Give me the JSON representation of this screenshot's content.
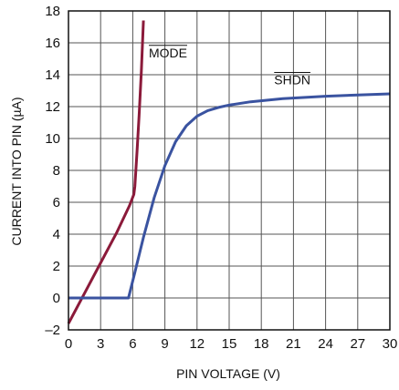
{
  "chart_data": {
    "type": "line",
    "title": "",
    "xlabel": "PIN VOLTAGE (V)",
    "ylabel": "CURRENT INTO PIN (µA)",
    "xlim": [
      0,
      30
    ],
    "ylim": [
      -2,
      18
    ],
    "x_ticks": [
      "0",
      "3",
      "6",
      "9",
      "12",
      "15",
      "18",
      "21",
      "24",
      "27",
      "30"
    ],
    "y_ticks": [
      "–2",
      "0",
      "2",
      "4",
      "6",
      "8",
      "10",
      "12",
      "14",
      "16",
      "18"
    ],
    "grid": true,
    "colors": {
      "mode": "#8B1A3A",
      "shdn": "#3A53A0",
      "grid": "#555555"
    },
    "series": [
      {
        "name": "MODE",
        "overline": true,
        "label_at": [
          7.5,
          15.1
        ],
        "points": [
          [
            0,
            -1.6
          ],
          [
            1.5,
            0.3
          ],
          [
            3,
            2.2
          ],
          [
            4.5,
            4.1
          ],
          [
            5.7,
            5.8
          ],
          [
            6.1,
            6.5
          ],
          [
            6.2,
            7.0
          ],
          [
            6.4,
            9.2
          ],
          [
            6.6,
            11.5
          ],
          [
            6.8,
            14.2
          ],
          [
            7.0,
            17.4
          ]
        ]
      },
      {
        "name": "SHDN",
        "overline": true,
        "label_at": [
          19.2,
          13.4
        ],
        "points": [
          [
            0,
            0.0
          ],
          [
            5.0,
            0.0
          ],
          [
            5.6,
            0.0
          ],
          [
            6.2,
            1.6
          ],
          [
            7.0,
            3.8
          ],
          [
            8.0,
            6.3
          ],
          [
            9.0,
            8.3
          ],
          [
            10.0,
            9.8
          ],
          [
            11.0,
            10.8
          ],
          [
            12.0,
            11.4
          ],
          [
            13.0,
            11.75
          ],
          [
            14.0,
            11.95
          ],
          [
            15.0,
            12.1
          ],
          [
            17.0,
            12.3
          ],
          [
            20.0,
            12.5
          ],
          [
            24.0,
            12.65
          ],
          [
            27.0,
            12.73
          ],
          [
            30.0,
            12.8
          ]
        ]
      }
    ]
  }
}
